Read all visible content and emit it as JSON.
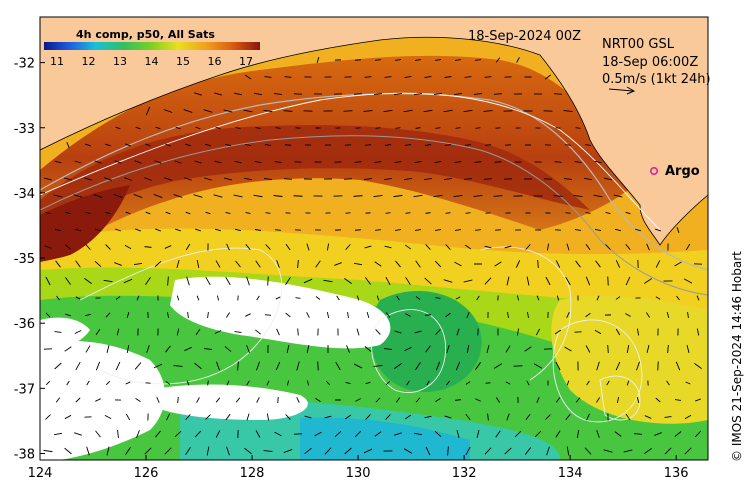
{
  "map": {
    "lon_ticks": [
      "124",
      "126",
      "128",
      "130",
      "132",
      "134",
      "136"
    ],
    "lat_ticks": [
      "-32",
      "-33",
      "-34",
      "-35",
      "-36",
      "-37",
      "-38"
    ],
    "lon_range": [
      124,
      136.6
    ],
    "lat_range": [
      -38.1,
      -31.3
    ]
  },
  "colorbar": {
    "title": "4h comp, p50, All Sats",
    "labels": [
      "11",
      "12",
      "13",
      "14",
      "15",
      "16",
      "17"
    ],
    "colors": [
      "#0a1a8c",
      "#1f5fe0",
      "#18c0d8",
      "#30c060",
      "#7fd020",
      "#e8e020",
      "#f0a020",
      "#d86010",
      "#a02010",
      "#7a1010"
    ]
  },
  "header": {
    "date": "18-Sep-2024 00Z",
    "current_source": "NRT00 GSL",
    "current_time": "18-Sep 06:00Z",
    "arrow_scale": "0.5m/s (1kt 24h)"
  },
  "argo": {
    "label": "Argo",
    "color": "#e0209a"
  },
  "credit": "© IMOS 21-Sep-2024 14:46 Hobart",
  "land_color": "#f9c99a"
}
